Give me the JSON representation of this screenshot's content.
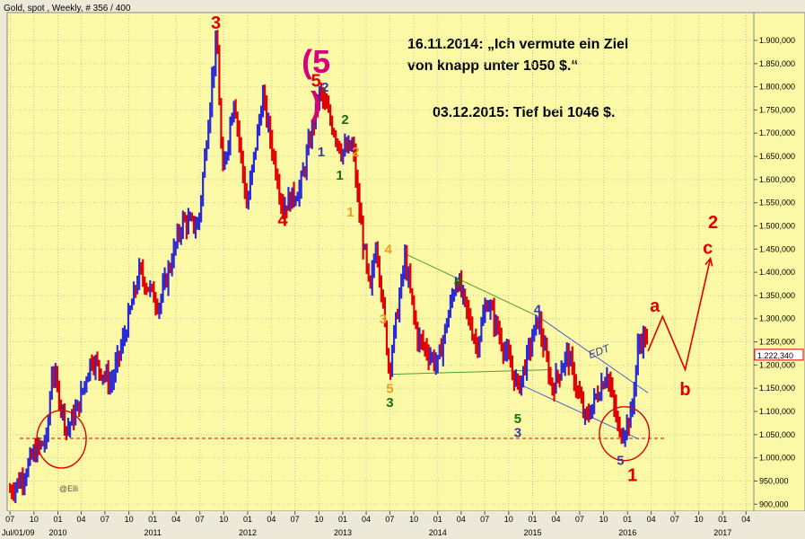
{
  "header": {
    "title": "Gold, spot , Weekly, # 356 / 400",
    "credit": "@Elli"
  },
  "annotations": {
    "note_line1": "16.11.2014: „Ich vermute ein Ziel",
    "note_line2": "von knapp unter 1050 $.“",
    "note_line3": "03.12.2015: Tief bei 1046 $.",
    "edt_label": "EDT",
    "wave_labels": [
      {
        "text": "3",
        "color": "#e00000",
        "x": "2011-09-01",
        "y": 1925
      },
      {
        "text": "4",
        "color": "#e00000",
        "x": "2012-05-15",
        "y": 1500
      },
      {
        "text": "(5",
        "color": "#d6007a",
        "x": "2012-09-20",
        "y": 1830
      },
      {
        "text": "5",
        "color": "#e00000",
        "x": "2012-09-20",
        "y": 1800
      },
      {
        "text": ")",
        "color": "#d6007a",
        "x": "2012-09-20",
        "y": 1740
      },
      {
        "text": "2",
        "color": "#3a3aa0",
        "x": "2012-10-25",
        "y": 1790
      },
      {
        "text": "1",
        "color": "#3a3aa0",
        "x": "2012-10-10",
        "y": 1650
      },
      {
        "text": "2",
        "color": "#176e17",
        "x": "2013-01-10",
        "y": 1720
      },
      {
        "text": "1",
        "color": "#176e17",
        "x": "2012-12-20",
        "y": 1600
      },
      {
        "text": "2",
        "color": "#f09a20",
        "x": "2013-02-20",
        "y": 1650
      },
      {
        "text": "1",
        "color": "#f09a20",
        "x": "2013-01-30",
        "y": 1520
      },
      {
        "text": "4",
        "color": "#f09a20",
        "x": "2013-06-25",
        "y": 1440
      },
      {
        "text": "3",
        "color": "#f09a20",
        "x": "2013-06-05",
        "y": 1290
      },
      {
        "text": "5",
        "color": "#f09a20",
        "x": "2013-07-01",
        "y": 1140
      },
      {
        "text": "3",
        "color": "#176e17",
        "x": "2013-07-01",
        "y": 1110
      },
      {
        "text": "4",
        "color": "#176e17",
        "x": "2014-03-20",
        "y": 1370
      },
      {
        "text": "4",
        "color": "#3a3aa0",
        "x": "2015-01-20",
        "y": 1310
      },
      {
        "text": "5",
        "color": "#176e17",
        "x": "2014-11-05",
        "y": 1075
      },
      {
        "text": "3",
        "color": "#3a3aa0",
        "x": "2014-11-05",
        "y": 1045
      },
      {
        "text": "5",
        "color": "#3a3aa0",
        "x": "2015-12-05",
        "y": 985
      },
      {
        "text": "1",
        "color": "#e00000",
        "x": "2016-01-20",
        "y": 950
      },
      {
        "text": "a",
        "color": "#e00000",
        "x": "2016-04-15",
        "y": 1315
      },
      {
        "text": "b",
        "color": "#e00000",
        "x": "2016-08-10",
        "y": 1135
      },
      {
        "text": "c",
        "color": "#e00000",
        "x": "2016-11-05",
        "y": 1440
      },
      {
        "text": "2",
        "color": "#e00000",
        "x": "2016-11-25",
        "y": 1495
      }
    ]
  },
  "chart_data": {
    "type": "ohlc",
    "title": "Gold, spot , Weekly, # 356 / 400",
    "ylim": [
      885,
      1960
    ],
    "xlim": [
      "2009-06-20",
      "2017-05-01"
    ],
    "y_ticks": [
      {
        "value": 900,
        "label": "900,000"
      },
      {
        "value": 950,
        "label": "950,000"
      },
      {
        "value": 1000,
        "label": "1.000,000"
      },
      {
        "value": 1050,
        "label": "1.050,000"
      },
      {
        "value": 1100,
        "label": "1.100,000"
      },
      {
        "value": 1150,
        "label": "1.150,000"
      },
      {
        "value": 1200,
        "label": "1.200,000"
      },
      {
        "value": 1250,
        "label": "1.250,000"
      },
      {
        "value": 1300,
        "label": "1.300,000"
      },
      {
        "value": 1350,
        "label": "1.350,000"
      },
      {
        "value": 1400,
        "label": "1.400,000"
      },
      {
        "value": 1450,
        "label": "1.450,000"
      },
      {
        "value": 1500,
        "label": "1.500,000"
      },
      {
        "value": 1550,
        "label": "1.550,000"
      },
      {
        "value": 1600,
        "label": "1.600,000"
      },
      {
        "value": 1650,
        "label": "1.650,000"
      },
      {
        "value": 1700,
        "label": "1.700,000"
      },
      {
        "value": 1750,
        "label": "1.750,000"
      },
      {
        "value": 1800,
        "label": "1.800,000"
      },
      {
        "value": 1850,
        "label": "1.850,000"
      },
      {
        "value": 1900,
        "label": "1.900,000"
      }
    ],
    "x_ticks": [
      {
        "date": "2009-07-01",
        "label": "07"
      },
      {
        "date": "2009-10-01",
        "label": "10"
      },
      {
        "date": "2010-01-01",
        "label": "01"
      },
      {
        "date": "2010-04-01",
        "label": "04"
      },
      {
        "date": "2010-07-01",
        "label": "07"
      },
      {
        "date": "2010-10-01",
        "label": "10"
      },
      {
        "date": "2011-01-01",
        "label": "01"
      },
      {
        "date": "2011-04-01",
        "label": "04"
      },
      {
        "date": "2011-07-01",
        "label": "07"
      },
      {
        "date": "2011-10-01",
        "label": "10"
      },
      {
        "date": "2012-01-01",
        "label": "01"
      },
      {
        "date": "2012-04-01",
        "label": "04"
      },
      {
        "date": "2012-07-01",
        "label": "07"
      },
      {
        "date": "2012-10-01",
        "label": "10"
      },
      {
        "date": "2013-01-01",
        "label": "01"
      },
      {
        "date": "2013-04-01",
        "label": "04"
      },
      {
        "date": "2013-07-01",
        "label": "07"
      },
      {
        "date": "2013-10-01",
        "label": "10"
      },
      {
        "date": "2014-01-01",
        "label": "01"
      },
      {
        "date": "2014-04-01",
        "label": "04"
      },
      {
        "date": "2014-07-01",
        "label": "07"
      },
      {
        "date": "2014-10-01",
        "label": "10"
      },
      {
        "date": "2015-01-01",
        "label": "01"
      },
      {
        "date": "2015-04-01",
        "label": "04"
      },
      {
        "date": "2015-07-01",
        "label": "07"
      },
      {
        "date": "2015-10-01",
        "label": "10"
      },
      {
        "date": "2016-01-01",
        "label": "01"
      },
      {
        "date": "2016-04-01",
        "label": "04"
      },
      {
        "date": "2016-07-01",
        "label": "07"
      },
      {
        "date": "2016-10-01",
        "label": "10"
      },
      {
        "date": "2017-01-01",
        "label": "01"
      },
      {
        "date": "2017-04-01",
        "label": "04"
      }
    ],
    "year_labels": [
      {
        "date": "2009-07-01",
        "label": "Jul/01/09"
      },
      {
        "date": "2010-01-01",
        "label": "2010"
      },
      {
        "date": "2011-01-01",
        "label": "2011"
      },
      {
        "date": "2012-01-01",
        "label": "2012"
      },
      {
        "date": "2013-01-01",
        "label": "2013"
      },
      {
        "date": "2014-01-01",
        "label": "2014"
      },
      {
        "date": "2015-01-01",
        "label": "2015"
      },
      {
        "date": "2016-01-01",
        "label": "2016"
      },
      {
        "date": "2017-01-01",
        "label": "2017"
      }
    ],
    "last_price": 1222.34,
    "last_price_label": "1.222,340",
    "support_level": 1042,
    "series_colors": {
      "up": "#2b2bd6",
      "down": "#e00000"
    },
    "price_path": [
      [
        "2009-07-01",
        930
      ],
      [
        "2009-08-15",
        955
      ],
      [
        "2009-10-01",
        1010
      ],
      [
        "2009-11-20",
        1040
      ],
      [
        "2009-12-10",
        1195
      ],
      [
        "2010-02-05",
        1060
      ],
      [
        "2010-03-20",
        1110
      ],
      [
        "2010-05-10",
        1215
      ],
      [
        "2010-07-25",
        1160
      ],
      [
        "2010-09-15",
        1265
      ],
      [
        "2010-11-10",
        1400
      ],
      [
        "2011-01-25",
        1330
      ],
      [
        "2011-04-25",
        1510
      ],
      [
        "2011-06-25",
        1500
      ],
      [
        "2011-08-25",
        1860
      ],
      [
        "2011-09-05",
        1900
      ],
      [
        "2011-09-26",
        1600
      ],
      [
        "2011-11-10",
        1780
      ],
      [
        "2011-12-29",
        1540
      ],
      [
        "2012-02-28",
        1780
      ],
      [
        "2012-05-15",
        1540
      ],
      [
        "2012-07-20",
        1580
      ],
      [
        "2012-10-05",
        1790
      ],
      [
        "2012-12-28",
        1660
      ],
      [
        "2013-02-10",
        1670
      ],
      [
        "2013-02-25",
        1570
      ],
      [
        "2013-04-15",
        1350
      ],
      [
        "2013-05-10",
        1470
      ],
      [
        "2013-06-28",
        1190
      ],
      [
        "2013-08-28",
        1430
      ],
      [
        "2013-10-15",
        1260
      ],
      [
        "2013-12-31",
        1200
      ],
      [
        "2014-03-15",
        1390
      ],
      [
        "2014-06-01",
        1240
      ],
      [
        "2014-07-10",
        1340
      ],
      [
        "2014-09-30",
        1210
      ],
      [
        "2014-11-07",
        1150
      ],
      [
        "2015-01-22",
        1300
      ],
      [
        "2015-03-17",
        1150
      ],
      [
        "2015-05-15",
        1225
      ],
      [
        "2015-07-24",
        1080
      ],
      [
        "2015-10-14",
        1185
      ],
      [
        "2015-12-03",
        1046
      ],
      [
        "2016-01-15",
        1090
      ],
      [
        "2016-02-12",
        1245
      ],
      [
        "2016-03-10",
        1265
      ],
      [
        "2016-03-20",
        1222
      ]
    ],
    "projection_path": [
      [
        "2016-03-20",
        1230
      ],
      [
        "2016-05-15",
        1305
      ],
      [
        "2016-08-10",
        1190
      ],
      [
        "2016-11-15",
        1430
      ]
    ],
    "upper_trendline": [
      [
        "2013-08-28",
        1440
      ],
      [
        "2015-01-22",
        1305
      ]
    ],
    "lower_trendline": [
      [
        "2013-06-28",
        1180
      ],
      [
        "2015-03-17",
        1190
      ]
    ],
    "edt_channel_upper": [
      [
        "2015-01-22",
        1305
      ],
      [
        "2016-03-20",
        1140
      ]
    ],
    "edt_channel_lower": [
      [
        "2014-11-07",
        1160
      ],
      [
        "2016-02-15",
        1040
      ]
    ],
    "circles": [
      {
        "x": "2010-01-15",
        "y": 1040,
        "rx_days": 95,
        "ry_units": 62
      },
      {
        "x": "2015-12-20",
        "y": 1052,
        "rx_days": 96,
        "ry_units": 58
      }
    ]
  }
}
